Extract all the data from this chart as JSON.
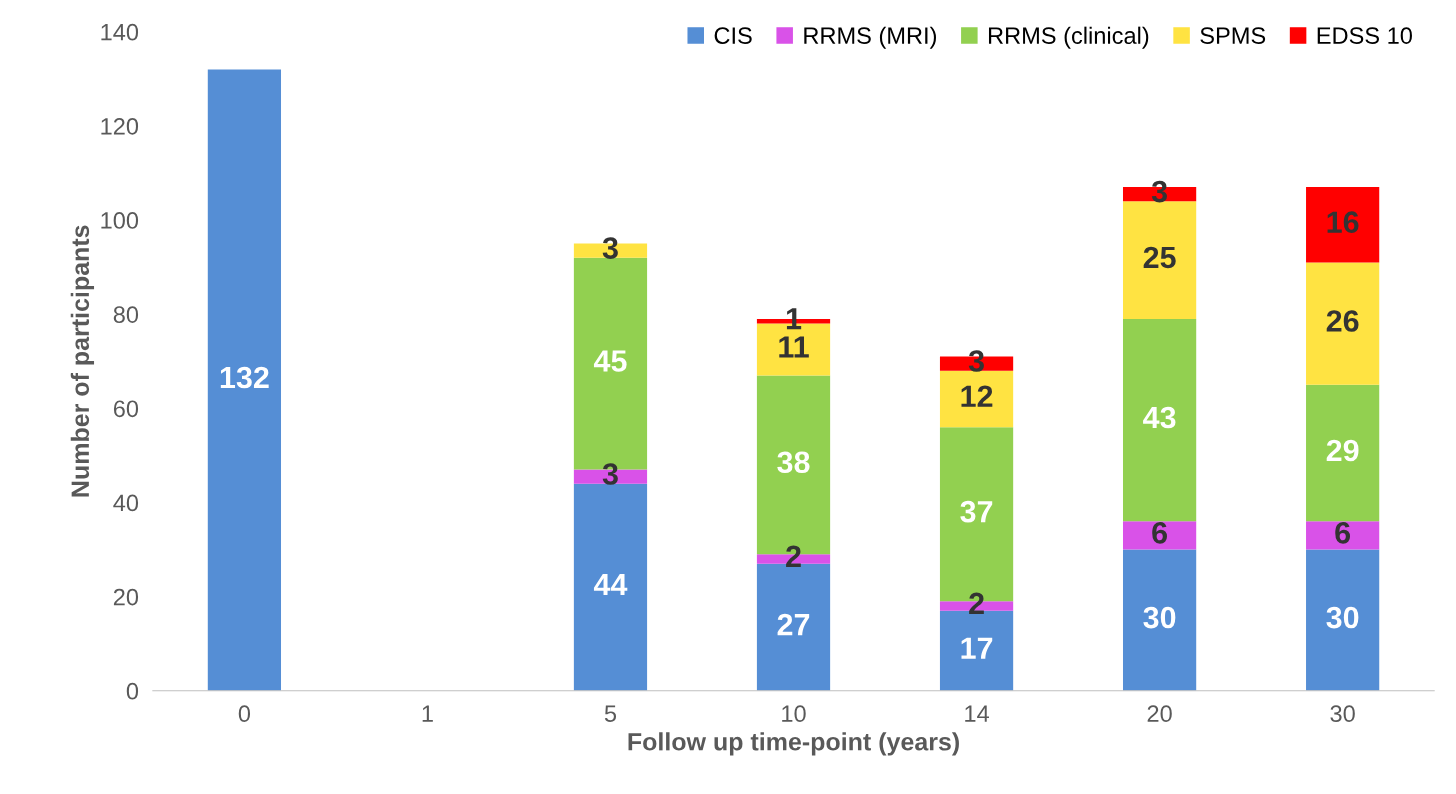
{
  "chart_data": {
    "type": "bar",
    "stacked": true,
    "xlabel": "Follow up time-point (years)",
    "ylabel": "Number of participants",
    "categories": [
      "0",
      "1",
      "5",
      "10",
      "14",
      "20",
      "30"
    ],
    "series": [
      {
        "name": "CIS",
        "color": "#558ed5",
        "values": [
          132,
          null,
          44,
          27,
          17,
          30,
          30
        ]
      },
      {
        "name": "RRMS (MRI)",
        "color": "#d952e8",
        "values": [
          null,
          null,
          3,
          2,
          2,
          6,
          6
        ]
      },
      {
        "name": "RRMS (clinical)",
        "color": "#92d050",
        "values": [
          null,
          null,
          45,
          38,
          37,
          43,
          29
        ]
      },
      {
        "name": "SPMS",
        "color": "#ffe342",
        "values": [
          null,
          null,
          3,
          11,
          12,
          25,
          26
        ]
      },
      {
        "name": "EDSS 10",
        "color": "#ff0000",
        "values": [
          null,
          null,
          null,
          1,
          3,
          3,
          16
        ]
      }
    ],
    "ylim": [
      0,
      140
    ],
    "yticks": [
      0,
      20,
      40,
      60,
      80,
      100,
      120,
      140
    ],
    "grid": false,
    "legend": "top right",
    "data_labels": true
  }
}
